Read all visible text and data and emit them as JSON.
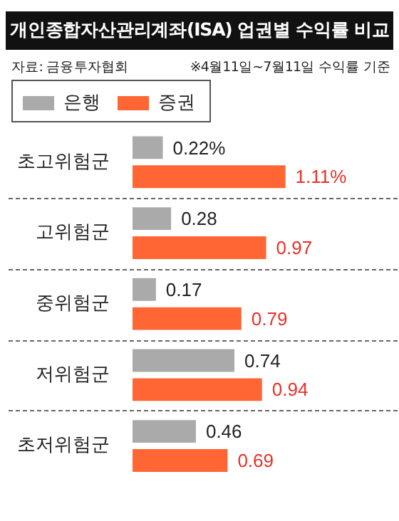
{
  "chart_data": {
    "type": "bar",
    "orientation": "horizontal",
    "title": "개인종합자산관리계좌(ISA) 업권별 수익률 비교",
    "annotations": [
      "자료: 금융투자협회",
      "※4월11일~7월11일 수익률 기준"
    ],
    "categories": [
      "초고위험군",
      "고위험군",
      "중위험군",
      "저위험군",
      "초저위험군"
    ],
    "series": [
      {
        "name": "은행",
        "color": "#aaaaaa",
        "values": [
          0.22,
          0.28,
          0.17,
          0.74,
          0.46
        ],
        "value_labels": [
          "0.22%",
          "0.28",
          "0.17",
          "0.74",
          "0.46"
        ]
      },
      {
        "name": "증권",
        "color": "#ff6633",
        "values": [
          1.11,
          0.97,
          0.79,
          0.94,
          0.69
        ],
        "value_labels": [
          "1.11%",
          "0.97",
          "0.79",
          "0.94",
          "0.69"
        ]
      }
    ],
    "legend": "top left"
  }
}
